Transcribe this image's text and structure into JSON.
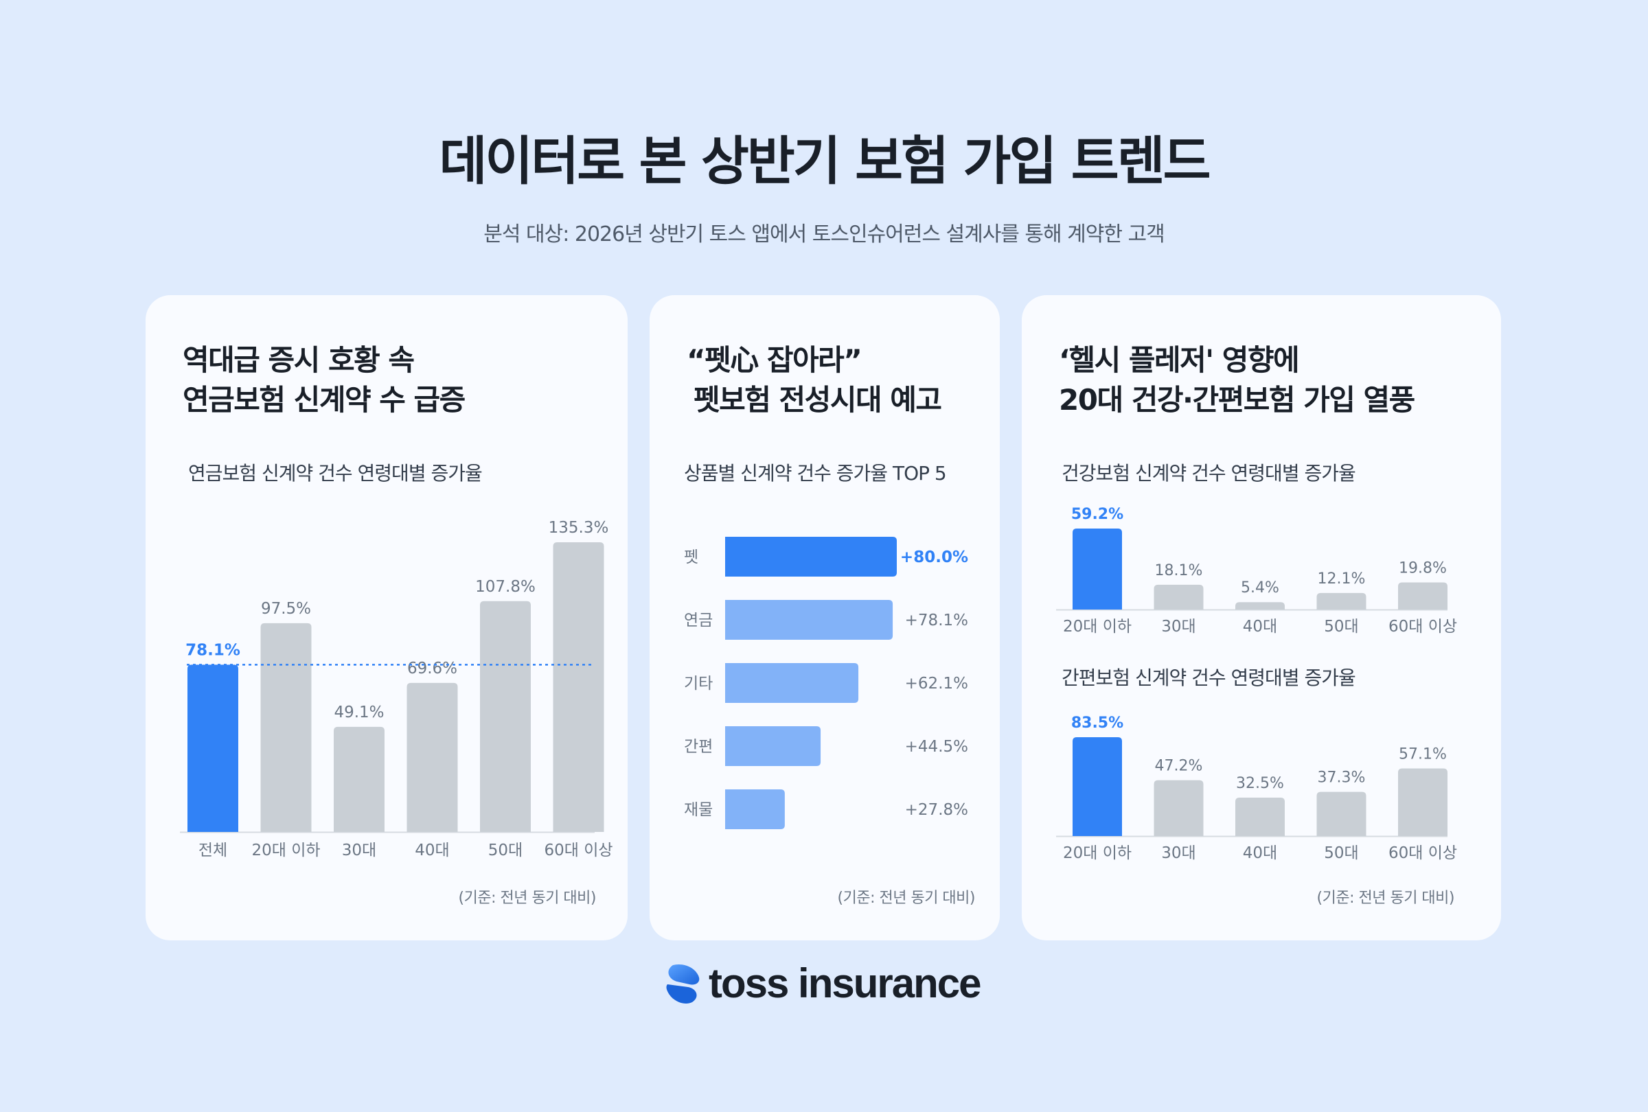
{
  "header": {
    "title": "데이터로 본 상반기 보험 가입 트렌드",
    "subtitle": "분석 대상: 2026년 상반기 토스 앱에서 토스인슈어런스 설계사를 통해 계약한 고객"
  },
  "colors": {
    "highlight": "#3182f6",
    "bar_gray": "#c9cfd5",
    "bar_light_blue": "#82b2f8",
    "background": "#dfebfd"
  },
  "cards": [
    {
      "title_lines": [
        "역대급 증시 호황 속",
        "연금보험 신계약 수 급증"
      ],
      "chart_title": "연금보험 신계약 건수 연령대별 증가율",
      "note": "(기준: 전년 동기 대비)"
    },
    {
      "title_lines": [
        "“펫心 잡아라”",
        "펫보험 전성시대 예고"
      ],
      "chart_title": "상품별 신계약 건수 증가율 TOP 5",
      "note": "(기준: 전년 동기 대비)"
    },
    {
      "title_lines": [
        "‘헬시 플레저' 영향에",
        "20대 건강·간편보험 가입 열풍"
      ],
      "chart_titles": [
        "건강보험 신계약 건수 연령대별 증가율",
        "간편보험 신계약 건수 연령대별 증가율"
      ],
      "note": "(기준: 전년 동기 대비)"
    }
  ],
  "chart_data": [
    {
      "type": "bar",
      "title": "연금보험 신계약 건수 연령대별 증가율",
      "categories": [
        "전체",
        "20대 이하",
        "30대",
        "40대",
        "50대",
        "60대 이상"
      ],
      "values": [
        78.1,
        97.5,
        49.1,
        69.6,
        107.8,
        135.3
      ],
      "value_labels": [
        "78.1%",
        "97.5%",
        "49.1%",
        "69.6%",
        "107.8%",
        "135.3%"
      ],
      "highlight_index": 0,
      "reference_line": 78.1,
      "ylim": [
        0,
        135.3
      ]
    },
    {
      "type": "bar",
      "orientation": "horizontal",
      "title": "상품별 신계약 건수 증가율 TOP 5",
      "categories": [
        "펫",
        "연금",
        "기타",
        "간편",
        "재물"
      ],
      "values": [
        80.0,
        78.1,
        62.1,
        44.5,
        27.8
      ],
      "value_labels": [
        "+80.0%",
        "+78.1%",
        "+62.1%",
        "+44.5%",
        "+27.8%"
      ],
      "highlight_index": 0,
      "xlim": [
        0,
        80.0
      ]
    },
    {
      "type": "bar",
      "title": "건강보험 신계약 건수 연령대별 증가율",
      "categories": [
        "20대 이하",
        "30대",
        "40대",
        "50대",
        "60대 이상"
      ],
      "values": [
        59.2,
        18.1,
        5.4,
        12.1,
        19.8
      ],
      "value_labels": [
        "59.2%",
        "18.1%",
        "5.4%",
        "12.1%",
        "19.8%"
      ],
      "highlight_index": 0,
      "ylim": [
        0,
        59.2
      ]
    },
    {
      "type": "bar",
      "title": "간편보험 신계약 건수 연령대별 증가율",
      "categories": [
        "20대 이하",
        "30대",
        "40대",
        "50대",
        "60대 이상"
      ],
      "values": [
        83.5,
        47.2,
        32.5,
        37.3,
        57.1
      ],
      "value_labels": [
        "83.5%",
        "47.2%",
        "32.5%",
        "37.3%",
        "57.1%"
      ],
      "highlight_index": 0,
      "ylim": [
        0,
        83.5
      ]
    }
  ],
  "logo": {
    "text": "toss insurance",
    "icon": "toss-logo-icon"
  }
}
